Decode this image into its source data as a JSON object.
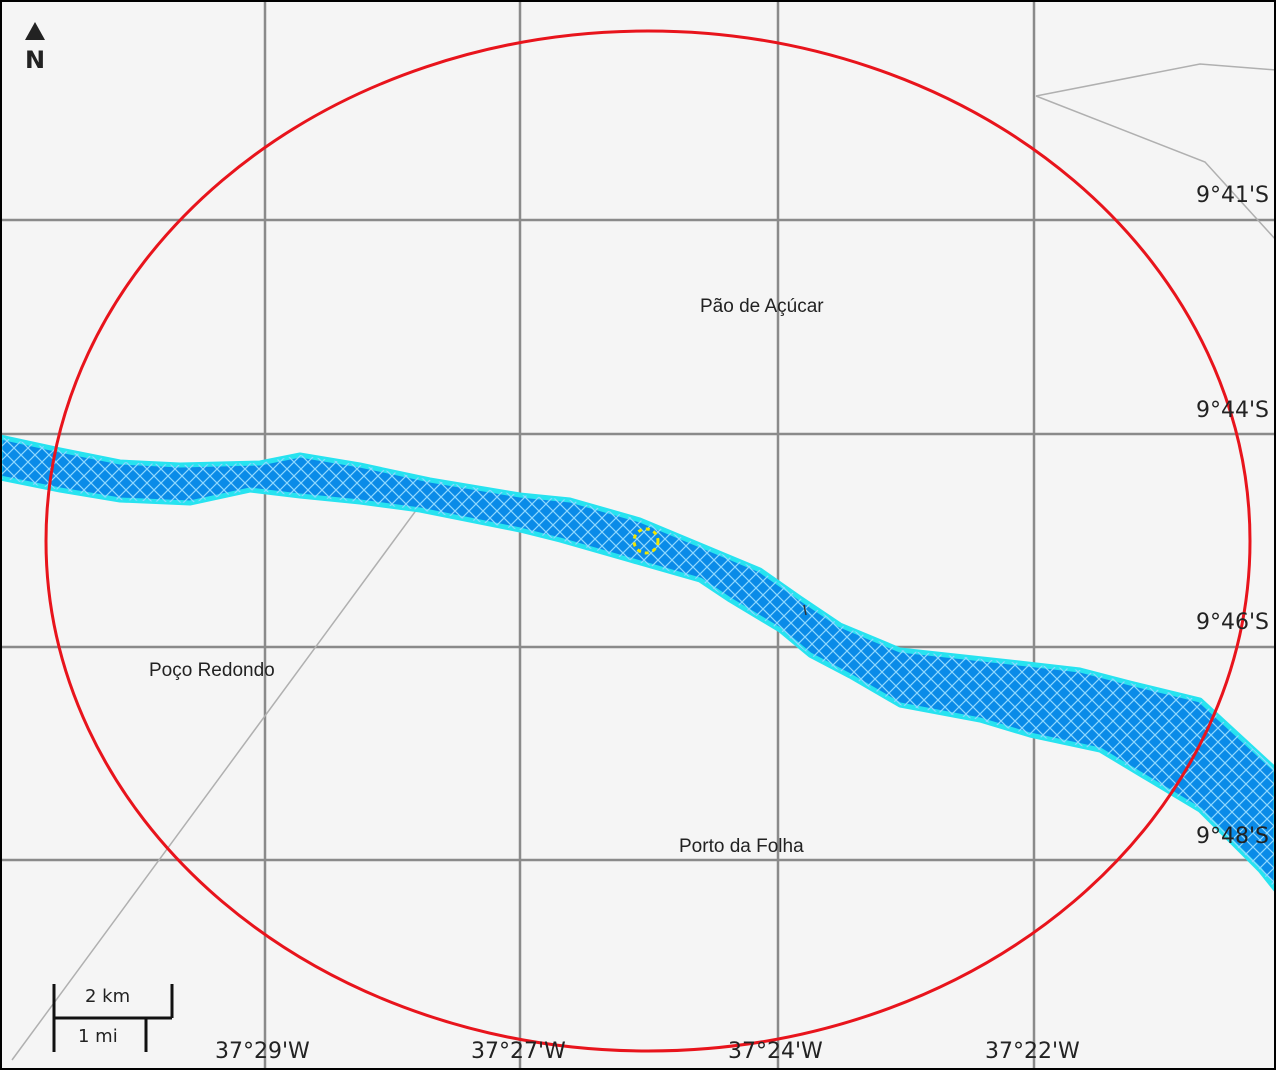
{
  "map": {
    "places": {
      "pao_de_acucar": "Pão de Açúcar",
      "poco_redondo": "Poço Redondo",
      "porto_da_folha": "Porto da Folha"
    },
    "lat_labels": [
      "9°41'S",
      "9°44'S",
      "9°46'S",
      "9°48'S"
    ],
    "lon_labels": [
      "37°29'W",
      "37°27'W",
      "37°24'W",
      "37°22'W"
    ],
    "north_arrow": "N",
    "scale_bar": {
      "km_label": "2 km",
      "mi_label": "1 mi"
    },
    "colors": {
      "background": "#f5f5f5",
      "grid": "#8a8a8a",
      "buffer_circle": "#e8141c",
      "river_fill": "#0a8be8",
      "river_outline": "#27e3f0",
      "hatch": "#8fd8ff",
      "site_marker": "#f2e600",
      "road": "#b0b0b0"
    },
    "icons": {
      "north": "north-arrow-icon",
      "site": "site-marker-icon"
    }
  }
}
